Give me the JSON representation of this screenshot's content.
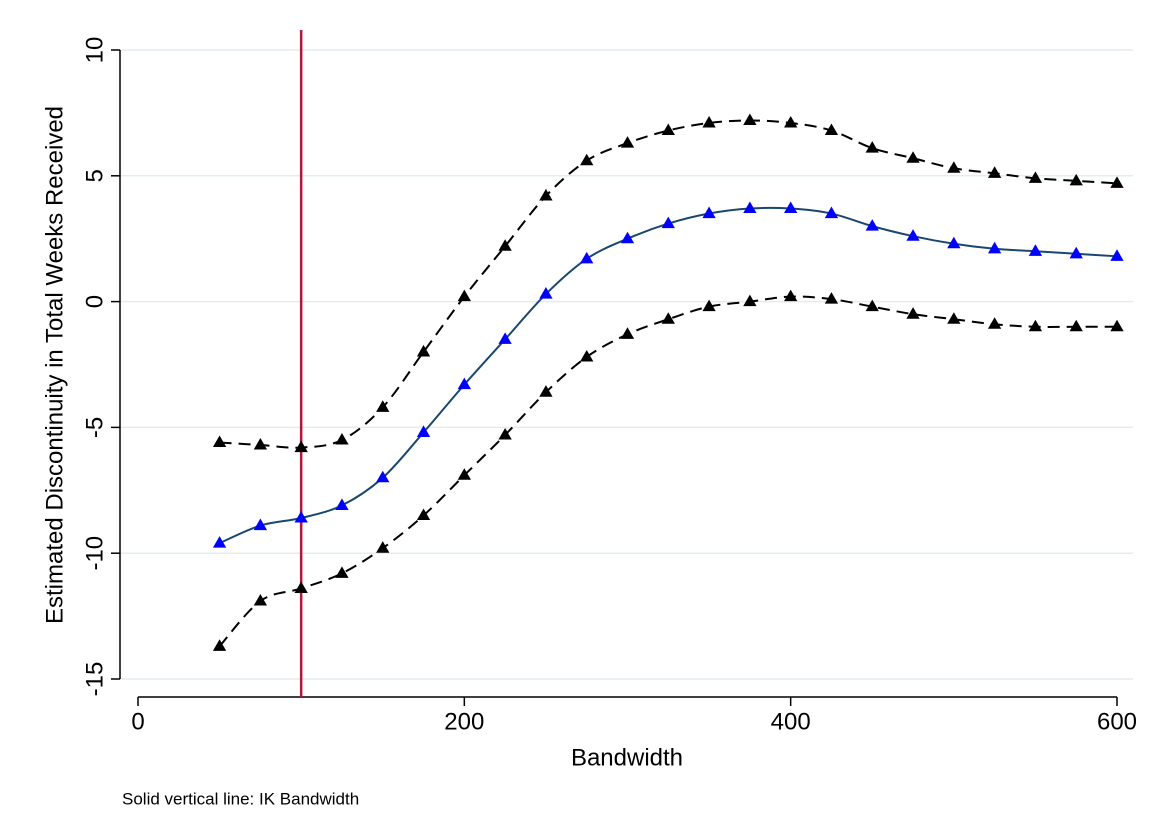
{
  "chart_data": {
    "type": "line",
    "x_label": "Bandwidth",
    "y_label": "Estimated Discontinuity in Total Weeks Received",
    "note": "Solid vertical line: IK Bandwidth",
    "x": [
      50,
      75,
      100,
      125,
      150,
      175,
      200,
      225,
      250,
      275,
      300,
      325,
      350,
      375,
      400,
      425,
      450,
      475,
      500,
      525,
      550,
      575,
      600
    ],
    "series": [
      {
        "color": "#000000",
        "marker_color": "#000000",
        "dashed": true,
        "values": [
          -5.6,
          -5.7,
          -5.8,
          -5.5,
          -4.2,
          -2.0,
          0.2,
          2.2,
          4.2,
          5.6,
          6.3,
          6.8,
          7.1,
          7.2,
          7.1,
          6.8,
          6.1,
          5.7,
          5.3,
          5.1,
          4.9,
          4.8,
          4.7
        ]
      },
      {
        "color": "#1a476f",
        "marker_color": "#0000ff",
        "dashed": false,
        "values": [
          -9.6,
          -8.9,
          -8.6,
          -8.1,
          -7.0,
          -5.2,
          -3.3,
          -1.5,
          0.3,
          1.7,
          2.5,
          3.1,
          3.5,
          3.7,
          3.7,
          3.5,
          3.0,
          2.6,
          2.3,
          2.1,
          2.0,
          1.9,
          1.8
        ]
      },
      {
        "color": "#000000",
        "marker_color": "#000000",
        "dashed": true,
        "values": [
          -13.7,
          -11.9,
          -11.4,
          -10.8,
          -9.8,
          -8.5,
          -6.9,
          -5.3,
          -3.6,
          -2.2,
          -1.3,
          -0.7,
          -0.2,
          0.0,
          0.2,
          0.1,
          -0.2,
          -0.5,
          -0.7,
          -0.9,
          -1.0,
          -1.0,
          -1.0
        ]
      }
    ],
    "vline": 100,
    "vline_color": "#b5173a",
    "xlim": [
      0,
      600
    ],
    "xticks": [
      0,
      200,
      400,
      600
    ],
    "ylim": [
      -15,
      10
    ],
    "yticks": [
      -15,
      -10,
      -5,
      0,
      5,
      10
    ],
    "grid": true,
    "grid_color": "#e3ecef"
  }
}
